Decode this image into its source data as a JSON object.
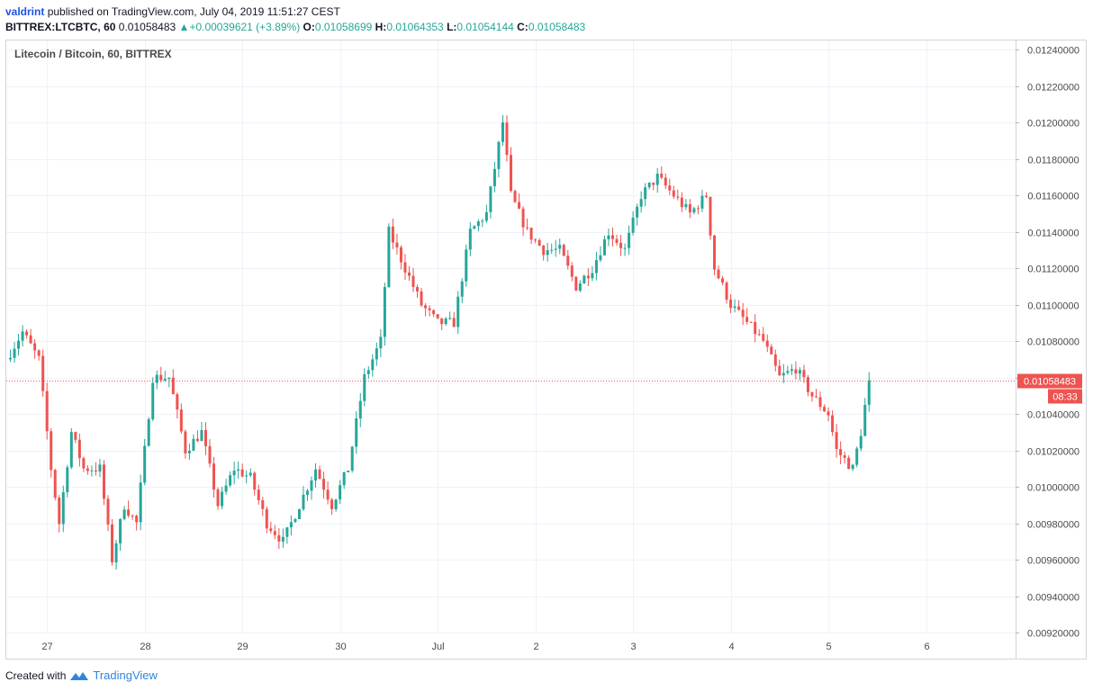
{
  "header": {
    "author": "valdrint",
    "published_text": "published on TradingView.com, July 04, 2019 11:51:27 CEST",
    "symbol": "BITTREX:LTCBTC, 60",
    "last": "0.01058483",
    "change_arrow": "▲",
    "change": "+0.00039621 (+3.89%)",
    "o_label": "O:",
    "o_value": "0.01058699",
    "h_label": "H:",
    "h_value": "0.01064353",
    "l_label": "L:",
    "l_value": "0.01054144",
    "c_label": "C:",
    "c_value": "0.01058483"
  },
  "footer": {
    "created_with": "Created with",
    "brand": "TradingView",
    "logo_icon": "tradingview-logo-icon"
  },
  "colors": {
    "up": "#26a69a",
    "down": "#ef5350",
    "grid": "#eef2f8",
    "axis": "#9598a1",
    "price_tag": "#ef5350"
  },
  "price_tag": {
    "value": "0.01058483",
    "countdown": "08:33"
  },
  "chart_data": {
    "type": "candlestick",
    "title": "Litecoin / Bitcoin, 60, BITTREX",
    "y_range": [
      0.0092,
      0.01245
    ],
    "y_ticks": [
      "0.00920000",
      "0.00940000",
      "0.00960000",
      "0.00980000",
      "0.01000000",
      "0.01020000",
      "0.01040000",
      "0.01060000",
      "0.01080000",
      "0.01100000",
      "0.01120000",
      "0.01140000",
      "0.01160000",
      "0.01180000",
      "0.01200000",
      "0.01220000",
      "0.01240000"
    ],
    "x_range_days": [
      "2019-06-26 14:00",
      "2019-07-06 22:00"
    ],
    "x_ticks": [
      {
        "label": "27",
        "date": "2019-06-27"
      },
      {
        "label": "28",
        "date": "2019-06-28"
      },
      {
        "label": "29",
        "date": "2019-06-29"
      },
      {
        "label": "30",
        "date": "2019-06-30"
      },
      {
        "label": "Jul",
        "date": "2019-07-01"
      },
      {
        "label": "2",
        "date": "2019-07-02"
      },
      {
        "label": "3",
        "date": "2019-07-03"
      },
      {
        "label": "4",
        "date": "2019-07-04"
      },
      {
        "label": "5",
        "date": "2019-07-05"
      },
      {
        "label": "6",
        "date": "2019-07-06"
      }
    ],
    "last_price": 0.01058483,
    "ohlc_close_path": [
      [
        "2019-06-26 14:00",
        0.0107
      ],
      [
        "2019-06-26 18:00",
        0.01085
      ],
      [
        "2019-06-26 22:00",
        0.0107
      ],
      [
        "2019-06-27 01:00",
        0.0101
      ],
      [
        "2019-06-27 03:00",
        0.0098
      ],
      [
        "2019-06-27 06:00",
        0.0103
      ],
      [
        "2019-06-27 09:00",
        0.0101
      ],
      [
        "2019-06-27 13:00",
        0.0101
      ],
      [
        "2019-06-27 16:00",
        0.0096
      ],
      [
        "2019-06-27 19:00",
        0.0099
      ],
      [
        "2019-06-27 22:00",
        0.0098
      ],
      [
        "2019-06-28 02:00",
        0.0106
      ],
      [
        "2019-06-28 06:00",
        0.0106
      ],
      [
        "2019-06-28 10:00",
        0.0102
      ],
      [
        "2019-06-28 14:00",
        0.0103
      ],
      [
        "2019-06-28 18:00",
        0.0099
      ],
      [
        "2019-06-28 22:00",
        0.0101
      ],
      [
        "2019-06-29 02:00",
        0.01005
      ],
      [
        "2019-06-29 06:00",
        0.0098
      ],
      [
        "2019-06-29 10:00",
        0.0097
      ],
      [
        "2019-06-29 14:00",
        0.0099
      ],
      [
        "2019-06-29 18:00",
        0.0101
      ],
      [
        "2019-06-29 22:00",
        0.0099
      ],
      [
        "2019-06-30 02:00",
        0.0101
      ],
      [
        "2019-06-30 06:00",
        0.0106
      ],
      [
        "2019-06-30 10:00",
        0.0108
      ],
      [
        "2019-06-30 12:00",
        0.0114
      ],
      [
        "2019-06-30 16:00",
        0.0112
      ],
      [
        "2019-06-30 20:00",
        0.011
      ],
      [
        "2019-07-01 00:00",
        0.0109
      ],
      [
        "2019-07-01 04:00",
        0.0109
      ],
      [
        "2019-07-01 08:00",
        0.0114
      ],
      [
        "2019-07-01 12:00",
        0.0115
      ],
      [
        "2019-07-01 16:00",
        0.012
      ],
      [
        "2019-07-01 18:00",
        0.0116
      ],
      [
        "2019-07-01 22:00",
        0.0114
      ],
      [
        "2019-07-02 02:00",
        0.0113
      ],
      [
        "2019-07-02 06:00",
        0.0113
      ],
      [
        "2019-07-02 10:00",
        0.0111
      ],
      [
        "2019-07-02 14:00",
        0.0112
      ],
      [
        "2019-07-02 18:00",
        0.0114
      ],
      [
        "2019-07-02 22:00",
        0.0113
      ],
      [
        "2019-07-03 02:00",
        0.0116
      ],
      [
        "2019-07-03 06:00",
        0.0117
      ],
      [
        "2019-07-03 10:00",
        0.0116
      ],
      [
        "2019-07-03 14:00",
        0.0115
      ],
      [
        "2019-07-03 18:00",
        0.0116
      ],
      [
        "2019-07-03 20:00",
        0.0112
      ],
      [
        "2019-07-04 00:00",
        0.011
      ],
      [
        "2019-07-04 04:00",
        0.0109
      ],
      [
        "2019-07-04 08:00",
        0.0108
      ],
      [
        "2019-07-04 12:00",
        0.0106
      ],
      [
        "2019-07-04 16:00",
        0.01065
      ],
      [
        "2019-07-04 20:00",
        0.0105
      ],
      [
        "2019-07-05 00:00",
        0.0104
      ],
      [
        "2019-07-05 02:00",
        0.0102
      ],
      [
        "2019-07-05 06:00",
        0.0101
      ],
      [
        "2019-07-05 08:00",
        0.0103
      ],
      [
        "2019-07-05 10:00",
        0.01058483
      ]
    ]
  }
}
